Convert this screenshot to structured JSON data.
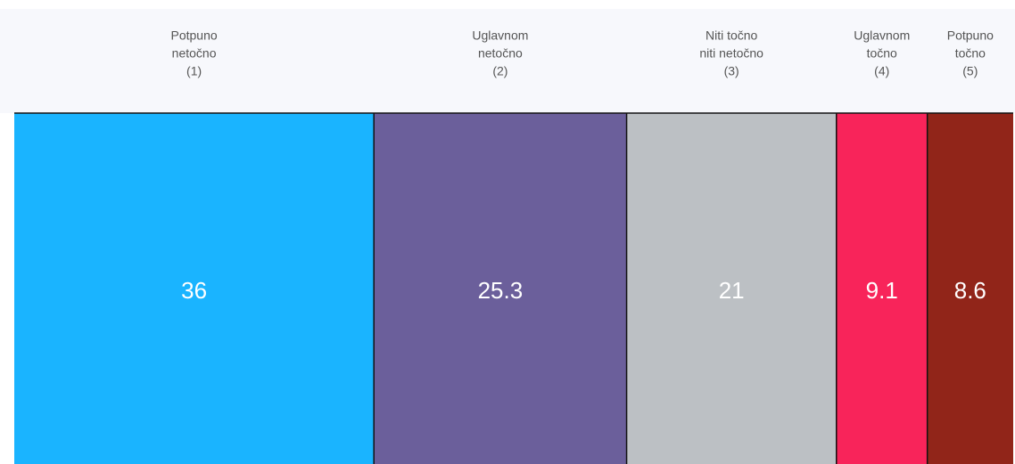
{
  "chart_data": {
    "type": "stacked-bar",
    "categories": [
      [
        "Potpuno",
        "netočno",
        "(1)"
      ],
      [
        "Uglavnom",
        "netočno",
        "(2)"
      ],
      [
        "Niti točno",
        "niti netočno",
        "(3)"
      ],
      [
        "Uglavnom",
        "točno",
        "(4)"
      ],
      [
        "Potpuno",
        "točno",
        "(5)"
      ]
    ],
    "values": [
      36,
      25.3,
      21,
      9.1,
      8.6
    ],
    "colors": [
      "#1ab4ff",
      "#6b5f9b",
      "#bcc0c4",
      "#f8245a",
      "#912519"
    ]
  }
}
